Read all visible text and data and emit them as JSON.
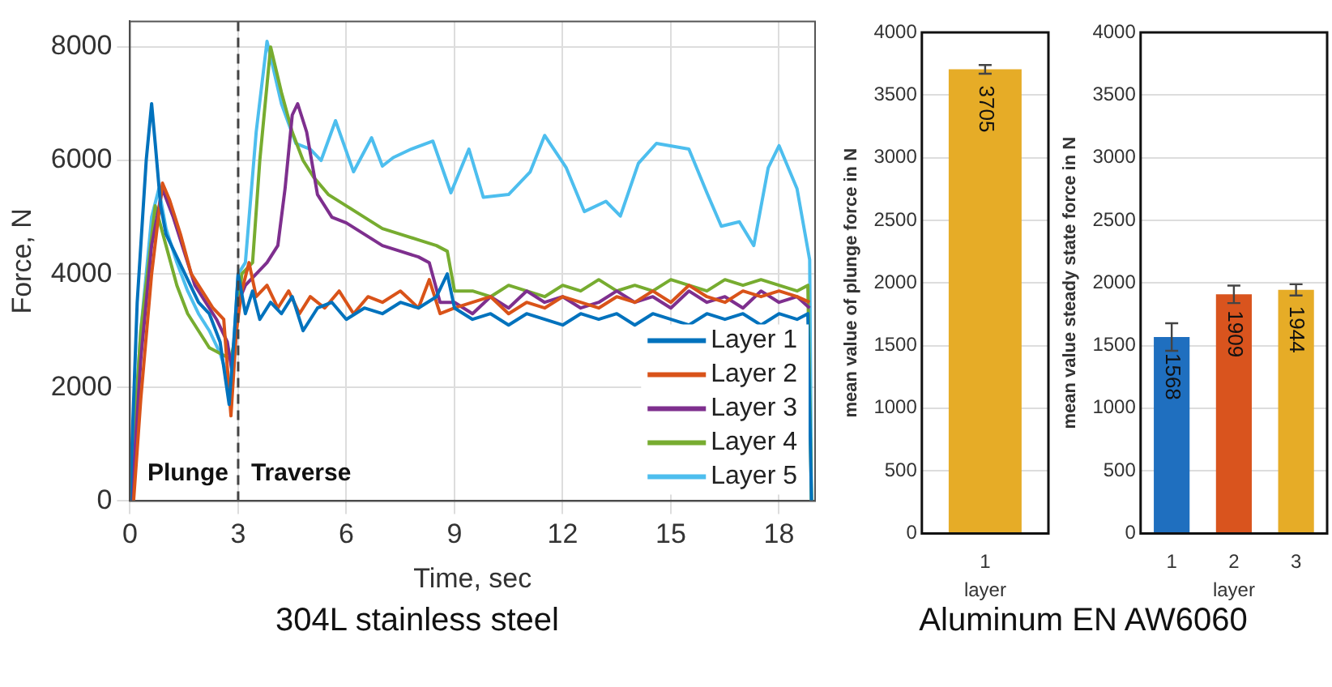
{
  "chart_data": [
    {
      "type": "line",
      "xlabel": "Time, sec",
      "ylabel": "Force, N",
      "xlim": [
        0,
        19
      ],
      "ylim": [
        0,
        8450
      ],
      "xticks": [
        0,
        3,
        6,
        9,
        12,
        15,
        18
      ],
      "yticks": [
        0,
        2000,
        4000,
        6000,
        8000
      ],
      "grid": true,
      "legend": "bottom right",
      "ref_lines": [
        {
          "axis": "x",
          "value": 3,
          "line_style": "dashed",
          "color": "#444444"
        }
      ],
      "annotations": [
        "Plunge",
        "Traverse",
        "304L stainless steel"
      ],
      "series": [
        {
          "name": "Layer 1",
          "color": "#0072bd",
          "x": [
            0,
            0.2,
            0.45,
            0.6,
            0.7,
            0.85,
            1.0,
            1.3,
            1.6,
            1.9,
            2.2,
            2.5,
            2.75,
            2.9,
            3.0,
            3.2,
            3.4,
            3.6,
            3.9,
            4.2,
            4.5,
            4.8,
            5.2,
            5.6,
            6.0,
            6.5,
            7.0,
            7.5,
            8.0,
            8.5,
            8.8,
            9.0,
            9.5,
            10,
            10.5,
            11,
            11.5,
            12,
            12.5,
            13,
            13.5,
            14,
            14.5,
            15,
            15.5,
            16,
            16.5,
            17,
            17.5,
            18,
            18.5,
            18.8,
            18.9
          ],
          "values": [
            0,
            3500,
            6000,
            7000,
            6300,
            5200,
            4700,
            4300,
            3900,
            3500,
            3300,
            2800,
            1700,
            3000,
            4000,
            3300,
            3700,
            3200,
            3500,
            3300,
            3600,
            3000,
            3400,
            3500,
            3200,
            3400,
            3300,
            3500,
            3400,
            3600,
            4000,
            3400,
            3200,
            3300,
            3100,
            3300,
            3200,
            3100,
            3300,
            3200,
            3300,
            3100,
            3300,
            3200,
            3100,
            3300,
            3200,
            3300,
            3100,
            3300,
            3200,
            3300,
            0
          ]
        },
        {
          "name": "Layer 2",
          "color": "#d95319",
          "x": [
            0.1,
            0.3,
            0.6,
            0.9,
            1.1,
            1.4,
            1.7,
            2.0,
            2.3,
            2.6,
            2.8,
            2.95,
            3.1,
            3.3,
            3.5,
            3.8,
            4.1,
            4.4,
            4.7,
            5.0,
            5.4,
            5.8,
            6.2,
            6.6,
            7.0,
            7.5,
            8.0,
            8.3,
            8.6,
            9.0,
            9.5,
            10,
            10.5,
            11,
            11.5,
            12,
            12.5,
            13,
            13.5,
            14,
            14.5,
            15,
            15.5,
            16,
            16.5,
            17,
            17.5,
            18,
            18.5,
            18.85
          ],
          "values": [
            0,
            1800,
            4000,
            5600,
            5300,
            4700,
            4000,
            3700,
            3400,
            3200,
            1500,
            3000,
            3700,
            4200,
            3600,
            3800,
            3400,
            3700,
            3300,
            3600,
            3400,
            3700,
            3300,
            3600,
            3500,
            3700,
            3400,
            3900,
            3300,
            3400,
            3500,
            3600,
            3300,
            3500,
            3400,
            3600,
            3500,
            3400,
            3600,
            3500,
            3700,
            3500,
            3800,
            3600,
            3500,
            3700,
            3600,
            3700,
            3600,
            3500
          ]
        },
        {
          "name": "Layer 3",
          "color": "#7e2f8e",
          "x": [
            0.05,
            0.3,
            0.6,
            0.9,
            1.2,
            1.5,
            1.8,
            2.1,
            2.4,
            2.7,
            2.85,
            3.0,
            3.2,
            3.5,
            3.8,
            4.1,
            4.3,
            4.5,
            4.65,
            4.9,
            5.2,
            5.6,
            6.0,
            6.5,
            7.0,
            7.5,
            8.0,
            8.3,
            8.6,
            9.0,
            9.5,
            10,
            10.5,
            11,
            11.5,
            12,
            12.5,
            13,
            13.5,
            14,
            14.5,
            15,
            15.5,
            16,
            16.5,
            17,
            17.5,
            18,
            18.5,
            18.85
          ],
          "values": [
            0,
            2500,
            4500,
            5500,
            5000,
            4400,
            3800,
            3500,
            3200,
            2800,
            2200,
            3500,
            3800,
            4000,
            4200,
            4500,
            5500,
            6800,
            7000,
            6500,
            5400,
            5000,
            4900,
            4700,
            4500,
            4400,
            4300,
            4200,
            3500,
            3500,
            3300,
            3600,
            3400,
            3700,
            3500,
            3600,
            3400,
            3500,
            3700,
            3500,
            3600,
            3400,
            3700,
            3500,
            3600,
            3400,
            3700,
            3500,
            3600,
            3400
          ]
        },
        {
          "name": "Layer 4",
          "color": "#77ac30",
          "x": [
            0,
            0.3,
            0.7,
            1.0,
            1.3,
            1.6,
            1.9,
            2.2,
            2.5,
            2.8,
            2.95,
            3.1,
            3.4,
            3.6,
            3.9,
            4.2,
            4.5,
            4.8,
            5.1,
            5.5,
            6.0,
            6.5,
            7.0,
            7.5,
            8.0,
            8.5,
            8.8,
            9.0,
            9.5,
            10,
            10.5,
            11,
            11.5,
            12,
            12.5,
            13,
            13.5,
            14,
            14.5,
            15,
            15.5,
            16,
            16.5,
            17,
            17.5,
            18,
            18.5,
            18.8,
            18.9
          ],
          "values": [
            0,
            3000,
            5200,
            4500,
            3800,
            3300,
            3000,
            2700,
            2600,
            2500,
            3000,
            4000,
            4200,
            6000,
            8000,
            7200,
            6500,
            6000,
            5700,
            5400,
            5200,
            5000,
            4800,
            4700,
            4600,
            4500,
            4400,
            3700,
            3700,
            3600,
            3800,
            3700,
            3600,
            3800,
            3700,
            3900,
            3700,
            3800,
            3700,
            3900,
            3800,
            3700,
            3900,
            3800,
            3900,
            3800,
            3700,
            3800,
            0
          ]
        },
        {
          "name": "Layer 5",
          "color": "#4dbeee",
          "x": [
            0,
            0.3,
            0.6,
            0.8,
            1.0,
            1.3,
            1.6,
            1.9,
            2.2,
            2.5,
            2.8,
            3.0,
            3.2,
            3.5,
            3.8,
            4.2,
            4.6,
            5.0,
            5.3,
            5.7,
            6.2,
            6.7,
            7.0,
            7.3,
            7.8,
            8.4,
            8.9,
            9.4,
            9.8,
            10.5,
            11.1,
            11.5,
            12.1,
            12.6,
            13.2,
            13.6,
            14.1,
            14.6,
            15.5,
            16.0,
            16.4,
            16.9,
            17.3,
            17.7,
            18.0,
            18.5,
            18.85,
            18.9
          ],
          "values": [
            0,
            3000,
            5000,
            5500,
            4800,
            4200,
            3700,
            3300,
            3000,
            2600,
            2000,
            4000,
            4200,
            6500,
            8100,
            7000,
            6300,
            6200,
            6000,
            6700,
            5800,
            6400,
            5900,
            6050,
            6200,
            6340,
            5430,
            6200,
            5350,
            5400,
            5800,
            6440,
            5870,
            5100,
            5280,
            5020,
            5950,
            6300,
            6200,
            5430,
            4840,
            4920,
            4500,
            5870,
            6260,
            5500,
            4250,
            0
          ]
        }
      ]
    },
    {
      "type": "bar",
      "xlabel": "layer",
      "ylabel": "mean value of plunge force in N",
      "categories": [
        "1"
      ],
      "values": [
        3705
      ],
      "errors": [
        35
      ],
      "color": "#e6ac27",
      "ylim": [
        0,
        4000
      ],
      "yticks": [
        0,
        500,
        1000,
        1500,
        2000,
        2500,
        3000,
        3500,
        4000
      ],
      "grid": "y",
      "data_labels": true,
      "annotations": [
        "Aluminum EN AW6060"
      ]
    },
    {
      "type": "bar",
      "xlabel": "layer",
      "ylabel": "mean value steady state force in N",
      "categories": [
        "1",
        "2",
        "3"
      ],
      "values": [
        1568,
        1909,
        1944
      ],
      "errors": [
        110,
        70,
        45
      ],
      "colors": [
        "#1f6fbf",
        "#d9541e",
        "#e6ac27"
      ],
      "ylim": [
        0,
        4000
      ],
      "yticks": [
        0,
        500,
        1000,
        1500,
        2000,
        2500,
        3000,
        3500,
        4000
      ],
      "grid": "y",
      "data_labels": true
    }
  ]
}
